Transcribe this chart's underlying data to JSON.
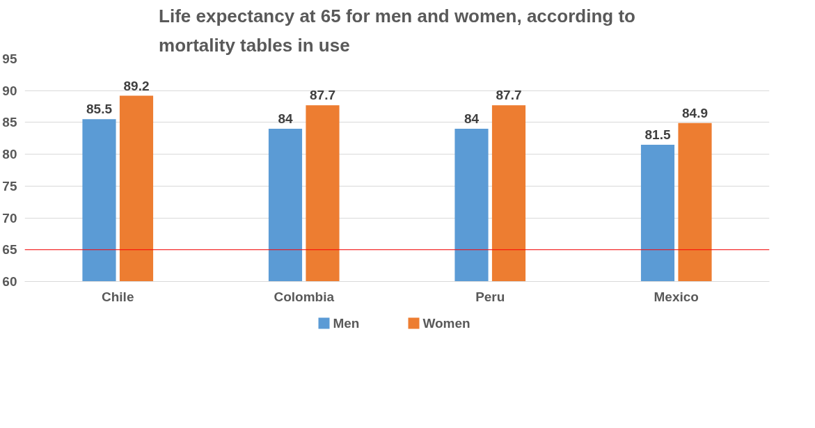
{
  "chart_data": {
    "type": "bar",
    "title": "Life expectancy at 65 for men and women, according to\nmortality tables in use",
    "categories": [
      "Chile",
      "Colombia",
      "Peru",
      "Mexico"
    ],
    "series": [
      {
        "name": "Men",
        "color": "#5b9bd5",
        "values": [
          85.5,
          84,
          84,
          81.5
        ]
      },
      {
        "name": "Women",
        "color": "#ed7d31",
        "values": [
          89.2,
          87.7,
          87.7,
          84.9
        ]
      }
    ],
    "ylim": [
      60,
      95
    ],
    "yticks": [
      60,
      65,
      70,
      75,
      80,
      85,
      90,
      95
    ],
    "grid": "y",
    "legend": "bottom",
    "data_labels": true,
    "ref_lines": [
      {
        "axis": "y",
        "value": 65,
        "color": "#ff0000"
      }
    ]
  }
}
